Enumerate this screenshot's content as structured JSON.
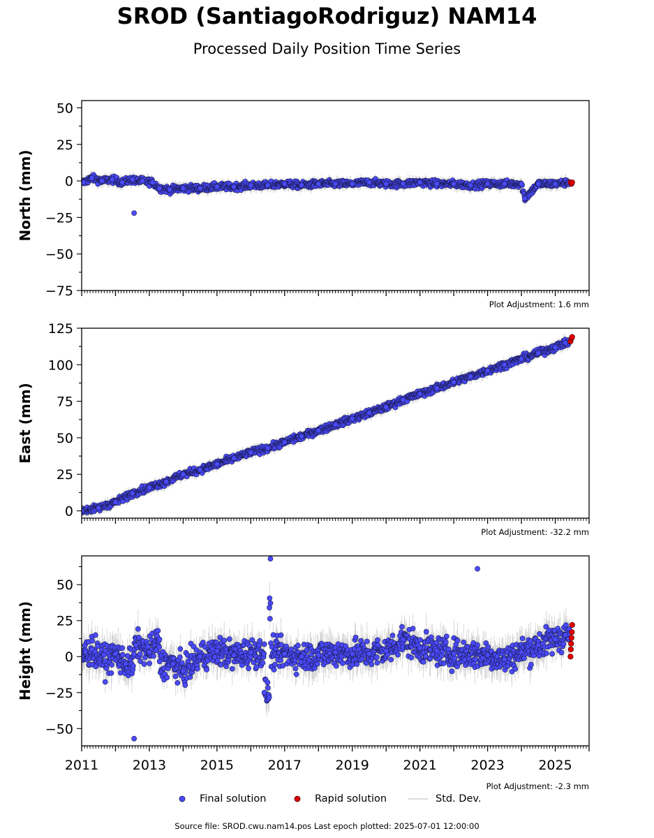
{
  "title": "SROD (SantiagoRodriguz) NAM14",
  "subtitle": "Processed Daily Position Time Series",
  "legend": {
    "final_label": "Final solution",
    "rapid_label": "Rapid solution",
    "std_label": "Std. Dev."
  },
  "footer": "Source file: SROD.cwu.nam14.pos  Last epoch plotted: 2025-07-01 12:00:00",
  "colors": {
    "final": "#4a4aff",
    "final_edge": "#1a1a4a",
    "rapid": "#e00000",
    "std": "#cfcfcf"
  },
  "chart_data": [
    {
      "type": "scatter",
      "ylabel": "North (mm)",
      "adjustment_label": "Plot Adjustment: 1.6 mm",
      "xlim": [
        2011,
        2026
      ],
      "ylim": [
        -75,
        55
      ],
      "yticks": [
        -75,
        -50,
        -25,
        0,
        25,
        50
      ],
      "xtick_labels": [],
      "final_points": [
        [
          2011.05,
          -1
        ],
        [
          2011.3,
          2
        ],
        [
          2011.6,
          0
        ],
        [
          2011.9,
          1
        ],
        [
          2012.2,
          -1
        ],
        [
          2012.5,
          1
        ],
        [
          2012.55,
          -22
        ],
        [
          2012.8,
          0
        ],
        [
          2013.1,
          -1
        ],
        [
          2013.3,
          -5
        ],
        [
          2013.6,
          -6
        ],
        [
          2014.0,
          -5
        ],
        [
          2014.5,
          -5
        ],
        [
          2015.0,
          -4
        ],
        [
          2015.5,
          -4
        ],
        [
          2016.0,
          -3
        ],
        [
          2016.5,
          -3
        ],
        [
          2017.0,
          -2
        ],
        [
          2017.5,
          -3
        ],
        [
          2018.0,
          -2
        ],
        [
          2018.5,
          -2
        ],
        [
          2019.0,
          -2
        ],
        [
          2019.5,
          -1
        ],
        [
          2020.0,
          -2
        ],
        [
          2020.5,
          -2
        ],
        [
          2021.0,
          -1
        ],
        [
          2021.5,
          -2
        ],
        [
          2022.0,
          -2
        ],
        [
          2022.5,
          -3
        ],
        [
          2023.0,
          -2
        ],
        [
          2023.5,
          -2
        ],
        [
          2024.0,
          -2
        ],
        [
          2024.1,
          -12
        ],
        [
          2024.5,
          -2
        ],
        [
          2025.0,
          -2
        ],
        [
          2025.4,
          -1
        ]
      ],
      "rapid_points": [
        [
          2025.45,
          -1
        ],
        [
          2025.48,
          -2
        ],
        [
          2025.5,
          -1
        ]
      ]
    },
    {
      "type": "scatter",
      "ylabel": "East (mm)",
      "adjustment_label": "Plot Adjustment: -32.2 mm",
      "xlim": [
        2011,
        2026
      ],
      "ylim": [
        -5,
        125
      ],
      "yticks": [
        0,
        25,
        50,
        75,
        100,
        125
      ],
      "xtick_labels": [],
      "final_points": [
        [
          2011.0,
          0
        ],
        [
          2011.5,
          2
        ],
        [
          2012.0,
          6
        ],
        [
          2012.5,
          12
        ],
        [
          2013.0,
          16
        ],
        [
          2013.5,
          20
        ],
        [
          2014.0,
          25
        ],
        [
          2014.5,
          28
        ],
        [
          2015.0,
          32
        ],
        [
          2015.5,
          36
        ],
        [
          2016.0,
          40
        ],
        [
          2016.5,
          43
        ],
        [
          2017.0,
          47
        ],
        [
          2017.5,
          51
        ],
        [
          2018.0,
          55
        ],
        [
          2018.5,
          59
        ],
        [
          2019.0,
          63
        ],
        [
          2019.5,
          67
        ],
        [
          2020.0,
          71
        ],
        [
          2020.5,
          76
        ],
        [
          2021.0,
          80
        ],
        [
          2021.5,
          84
        ],
        [
          2022.0,
          88
        ],
        [
          2022.5,
          92
        ],
        [
          2023.0,
          96
        ],
        [
          2023.5,
          100
        ],
        [
          2024.0,
          104
        ],
        [
          2024.5,
          108
        ],
        [
          2025.0,
          112
        ],
        [
          2025.3,
          115
        ]
      ],
      "rapid_points": [
        [
          2025.45,
          116
        ],
        [
          2025.48,
          118
        ],
        [
          2025.5,
          119
        ]
      ]
    },
    {
      "type": "scatter",
      "ylabel": "Height (mm)",
      "adjustment_label": "Plot Adjustment: -2.3 mm",
      "xlim": [
        2011,
        2026
      ],
      "ylim": [
        -62,
        70
      ],
      "yticks": [
        -50,
        -25,
        0,
        25,
        50
      ],
      "xtick_labels": [
        "2011",
        "2013",
        "2015",
        "2017",
        "2019",
        "2021",
        "2023",
        "2025"
      ],
      "final_points": [
        [
          2011.0,
          0
        ],
        [
          2011.3,
          5
        ],
        [
          2011.7,
          -3
        ],
        [
          2012.0,
          2
        ],
        [
          2012.3,
          -5
        ],
        [
          2012.55,
          -57
        ],
        [
          2012.6,
          8
        ],
        [
          2013.0,
          3
        ],
        [
          2013.3,
          12
        ],
        [
          2013.7,
          -5
        ],
        [
          2014.0,
          -10
        ],
        [
          2014.5,
          0
        ],
        [
          2015.0,
          4
        ],
        [
          2015.5,
          1
        ],
        [
          2016.0,
          3
        ],
        [
          2016.4,
          -25
        ],
        [
          2016.55,
          34
        ],
        [
          2016.58,
          68
        ],
        [
          2017.0,
          2
        ],
        [
          2017.5,
          0
        ],
        [
          2018.0,
          1
        ],
        [
          2018.5,
          3
        ],
        [
          2019.0,
          2
        ],
        [
          2019.5,
          2
        ],
        [
          2020.0,
          4
        ],
        [
          2020.5,
          12
        ],
        [
          2021.0,
          6
        ],
        [
          2021.5,
          4
        ],
        [
          2022.0,
          2
        ],
        [
          2022.7,
          61
        ],
        [
          2023.0,
          1
        ],
        [
          2023.5,
          -2
        ],
        [
          2024.0,
          3
        ],
        [
          2024.5,
          8
        ],
        [
          2025.0,
          12
        ],
        [
          2025.3,
          15
        ]
      ],
      "rapid_points": [
        [
          2025.45,
          0
        ],
        [
          2025.46,
          5
        ],
        [
          2025.47,
          9
        ],
        [
          2025.48,
          13
        ],
        [
          2025.49,
          17
        ],
        [
          2025.5,
          22
        ]
      ]
    }
  ]
}
